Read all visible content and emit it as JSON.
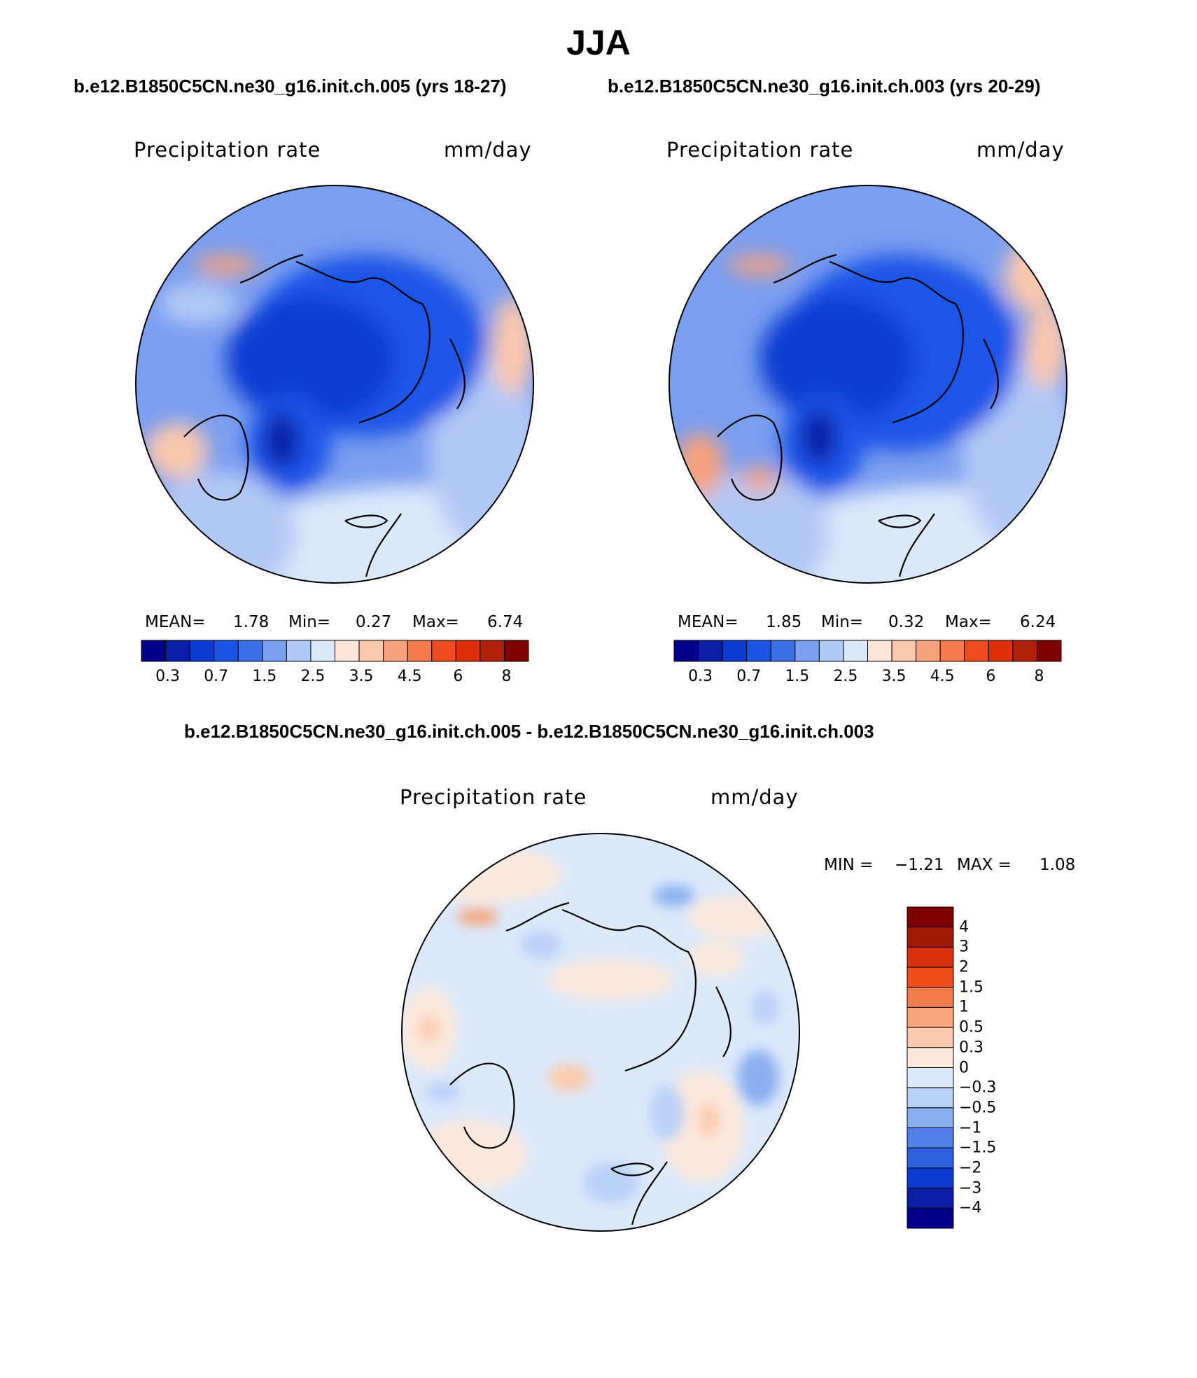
{
  "season": "JJA",
  "header": {
    "case1_title": "b.e12.B1850C5CN.ne30_g16.init.ch.005 (yrs 18-27)",
    "case2_title": "b.e12.B1850C5CN.ne30_g16.init.ch.003 (yrs 20-29)",
    "diff_title": "b.e12.B1850C5CN.ne30_g16.init.ch.005 - b.e12.B1850C5CN.ne30_g16.init.ch.003"
  },
  "panels": {
    "left": {
      "variable": "Precipitation rate",
      "units": "mm/day",
      "mean_label": "MEAN=",
      "mean": "1.78",
      "min_label": "Min=",
      "min": "0.27",
      "max_label": "Max=",
      "max": "6.74"
    },
    "right": {
      "variable": "Precipitation rate",
      "units": "mm/day",
      "mean_label": "MEAN=",
      "mean": "1.85",
      "min_label": "Min=",
      "min": "0.32",
      "max_label": "Max=",
      "max": "6.24"
    },
    "diff": {
      "variable": "Precipitation rate",
      "units": "mm/day",
      "min_label": "MIN =",
      "min": "−1.21",
      "max_label": "MAX =",
      "max": "1.08"
    }
  },
  "colorbar_abs": {
    "colors": [
      "#00008b",
      "#0a1ea8",
      "#0b3cd1",
      "#1a55e8",
      "#3a6fe6",
      "#7a9ef0",
      "#b2c8f6",
      "#dae8fb",
      "#fde6d6",
      "#fbc7ad",
      "#f7a27d",
      "#f27a4c",
      "#ee4c1e",
      "#dd3008",
      "#b0200a",
      "#7f0000"
    ],
    "labels": [
      "0.3",
      "0.7",
      "1.5",
      "2.5",
      "3.5",
      "4.5",
      "6",
      "8"
    ]
  },
  "colorbar_diff": {
    "colors": [
      "#7f0000",
      "#a31a06",
      "#d8300a",
      "#f04d1b",
      "#f57c4a",
      "#f8a47c",
      "#fbcaaf",
      "#fde9dc",
      "#dbe9fb",
      "#b9d0f7",
      "#8aaff0",
      "#5080e8",
      "#2e60e0",
      "#0b3cd1",
      "#0a1ea8",
      "#00008b"
    ],
    "labels": [
      "4",
      "3",
      "2",
      "1.5",
      "1",
      "0.5",
      "0.3",
      "0",
      "−0.3",
      "−0.5",
      "−1",
      "−1.5",
      "−2",
      "−3",
      "−4"
    ]
  }
}
